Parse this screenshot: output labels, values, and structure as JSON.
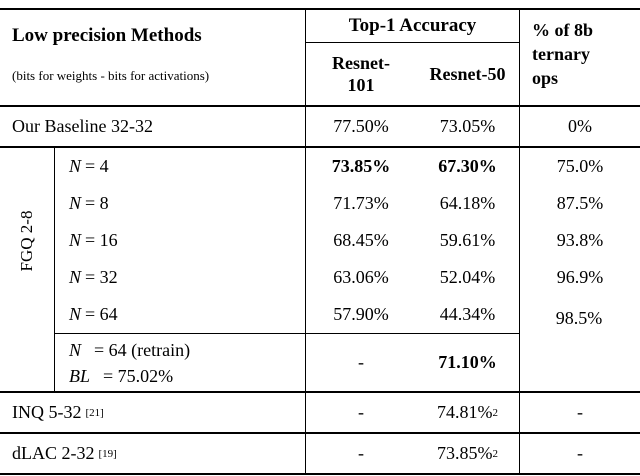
{
  "header": {
    "col1_title": "Low precision Methods",
    "col1_subtitle": "(bits for weights - bits for activations)",
    "top1_title": "Top-1 Accuracy",
    "resnet101": "Resnet-101",
    "resnet50": "Resnet-50",
    "ternary_title": "% of 8b ternary ops"
  },
  "baseline": {
    "label": "Our Baseline 32-32",
    "resnet101": "77.50%",
    "resnet50": "73.05%",
    "ternary": "0%"
  },
  "fgq": {
    "group_label": "FGQ 2-8",
    "rows": [
      {
        "var": "N",
        "rest": "= 4",
        "resnet101": "73.85%",
        "resnet50": "67.30%",
        "ternary": "75.0%"
      },
      {
        "var": "N",
        "rest": "= 8",
        "resnet101": "71.73%",
        "resnet50": "64.18%",
        "ternary": "87.5%"
      },
      {
        "var": "N",
        "rest": "= 16",
        "resnet101": "68.45%",
        "resnet50": "59.61%",
        "ternary": "93.8%"
      },
      {
        "var": "N",
        "rest": "= 32",
        "resnet101": "63.06%",
        "resnet50": "52.04%",
        "ternary": "96.9%"
      },
      {
        "var": "N",
        "rest": "= 64",
        "resnet101": "57.90%",
        "resnet50": "44.34%"
      }
    ],
    "ternary_multirow": "98.5%",
    "retrain": {
      "line1_var": "N",
      "line1_rest": "= 64 (retrain)",
      "line2_var": "BL",
      "line2_rest": "= 75.02%",
      "resnet101": "-",
      "resnet50": "71.10%"
    }
  },
  "inq": {
    "label": "INQ 5-32",
    "cite": "[21]",
    "resnet101": "-",
    "resnet50": "74.81%",
    "footnote": "2",
    "ternary": "-"
  },
  "dlac": {
    "label": "dLAC 2-32",
    "cite": "[19]",
    "resnet101": "-",
    "resnet50": "73.85%",
    "footnote": "2",
    "ternary": "-"
  }
}
